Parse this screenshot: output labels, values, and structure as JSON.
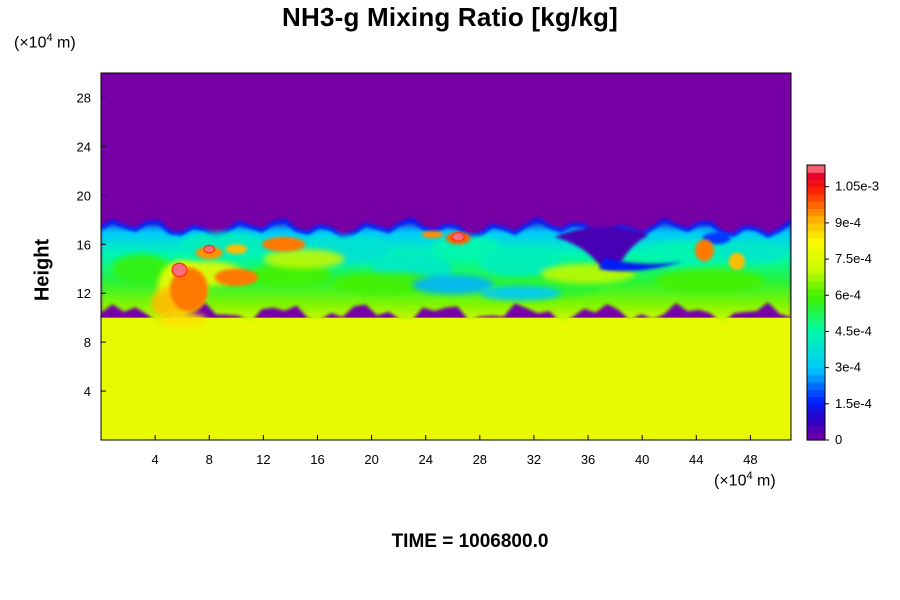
{
  "chart_data": {
    "type": "heatmap",
    "title": "NH3-g Mixing Ratio [kg/kg]",
    "ylabel": "Height",
    "xunit": {
      "prefix": "(×10",
      "exp": "4",
      "suffix": " m)"
    },
    "yunit": {
      "prefix": "(×10",
      "exp": "4",
      "suffix": " m)"
    },
    "xlim": [
      0,
      51
    ],
    "ylim": [
      0,
      30
    ],
    "xticks": [
      4,
      8,
      12,
      16,
      20,
      24,
      28,
      32,
      36,
      40,
      44,
      48
    ],
    "xtick_labels": [
      "4",
      "8",
      "12",
      "16",
      "20",
      "24",
      "28",
      "32",
      "36",
      "40",
      "44",
      "48"
    ],
    "yticks": [
      4,
      8,
      12,
      16,
      20,
      24,
      28
    ],
    "ytick_labels": [
      "4",
      "8",
      "12",
      "16",
      "20",
      "24",
      "28"
    ],
    "colorbar": {
      "min": 0,
      "max": 0.00114,
      "ticks": [
        0,
        0.00015,
        0.0003,
        0.00045,
        0.0006,
        0.00075,
        0.0009,
        0.00105
      ],
      "tick_labels": [
        "0",
        "1.5e-4",
        "3e-4",
        "4.5e-4",
        "6e-4",
        "7.5e-4",
        "9e-4",
        "1.05e-3"
      ]
    },
    "fields": {
      "upper_layer_value": 0,
      "lower_layer_value": 0.00078,
      "mixing_zone_height_range": [
        10,
        18
      ]
    }
  },
  "footer": {
    "time_text": "TIME = 1006800.0"
  }
}
